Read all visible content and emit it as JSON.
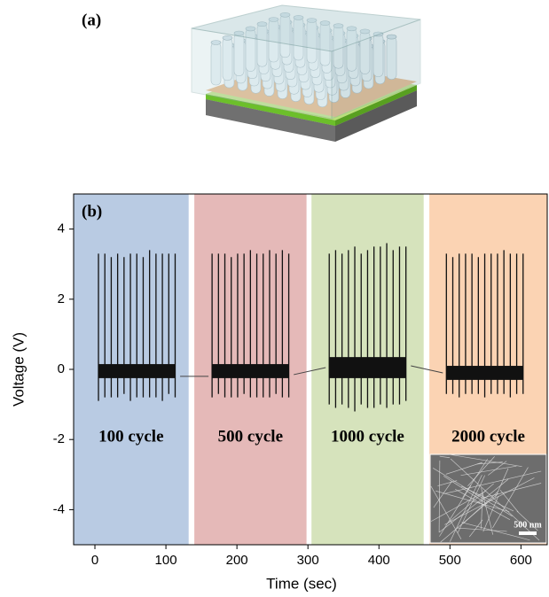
{
  "panel_a": {
    "label": "(a)"
  },
  "chart_data": {
    "type": "line",
    "label": "(b)",
    "xlabel": "Time (sec)",
    "ylabel": "Voltage (V)",
    "xlim": [
      -30,
      637
    ],
    "ylim": [
      -5,
      5
    ],
    "xticks": [
      0,
      100,
      200,
      300,
      400,
      500,
      600
    ],
    "yticks": [
      -4,
      -2,
      0,
      2,
      4
    ],
    "regions": [
      {
        "label": "100 cycle",
        "color": "#b9cbe3",
        "x": [
          -30,
          132
        ],
        "band": [
          -0.25,
          0.15
        ],
        "spikes": {
          "x": [
            5,
            14,
            23,
            32,
            41,
            50,
            59,
            68,
            77,
            86,
            95,
            104,
            113
          ],
          "max": [
            3.3,
            3.3,
            3.2,
            3.3,
            3.2,
            3.3,
            3.3,
            3.2,
            3.4,
            3.3,
            3.3,
            3.3,
            3.3
          ],
          "min": [
            -0.9,
            -0.8,
            -0.8,
            -0.8,
            -0.7,
            -0.9,
            -0.8,
            -0.8,
            -0.8,
            -0.8,
            -0.9,
            -0.7,
            -0.8
          ]
        }
      },
      {
        "label": "500 cycle",
        "color": "#e5b9b8",
        "x": [
          140,
          298
        ],
        "band": [
          -0.25,
          0.15
        ],
        "spikes": {
          "x": [
            165,
            174,
            183,
            192,
            201,
            210,
            219,
            228,
            237,
            246,
            255,
            264,
            273
          ],
          "max": [
            3.3,
            3.3,
            3.3,
            3.2,
            3.3,
            3.3,
            3.4,
            3.3,
            3.3,
            3.4,
            3.3,
            3.4,
            3.3
          ],
          "min": [
            -0.8,
            -0.7,
            -0.8,
            -0.8,
            -0.8,
            -0.7,
            -0.8,
            -0.8,
            -0.8,
            -0.8,
            -0.7,
            -0.8,
            -0.8
          ]
        }
      },
      {
        "label": "1000 cycle",
        "color": "#d6e3bc",
        "x": [
          305,
          463
        ],
        "band": [
          -0.25,
          0.35
        ],
        "spikes": {
          "x": [
            330,
            339,
            348,
            357,
            366,
            375,
            384,
            393,
            402,
            411,
            420,
            429,
            438
          ],
          "max": [
            3.3,
            3.4,
            3.3,
            3.4,
            3.5,
            3.3,
            3.4,
            3.5,
            3.5,
            3.6,
            3.4,
            3.5,
            3.5
          ],
          "min": [
            -1.0,
            -1.1,
            -1.0,
            -1.1,
            -1.2,
            -1.0,
            -1.1,
            -1.1,
            -1.0,
            -1.1,
            -1.0,
            -1.0,
            -0.9
          ]
        }
      },
      {
        "label": "2000 cycle",
        "color": "#fbd3b3",
        "x": [
          471,
          637
        ],
        "band": [
          -0.3,
          0.1
        ],
        "spikes": {
          "x": [
            495,
            504,
            513,
            522,
            531,
            540,
            549,
            558,
            567,
            576,
            585,
            594,
            603
          ],
          "max": [
            3.3,
            3.2,
            3.3,
            3.3,
            3.3,
            3.2,
            3.3,
            3.3,
            3.3,
            3.4,
            3.3,
            3.3,
            3.3
          ],
          "min": [
            -0.7,
            -0.7,
            -0.8,
            -0.7,
            -0.7,
            -0.7,
            -0.8,
            -0.7,
            -0.7,
            -0.7,
            -0.8,
            -0.7,
            -0.7
          ]
        }
      }
    ],
    "series": [
      {
        "color": "#444444",
        "x": [
          120,
          160,
          200,
          280,
          325,
          380,
          445,
          490
        ],
        "values": [
          -0.2,
          -0.2,
          null,
          -0.15,
          0.05,
          null,
          0.1,
          -0.1
        ]
      }
    ],
    "inset_label": "500 nm"
  }
}
